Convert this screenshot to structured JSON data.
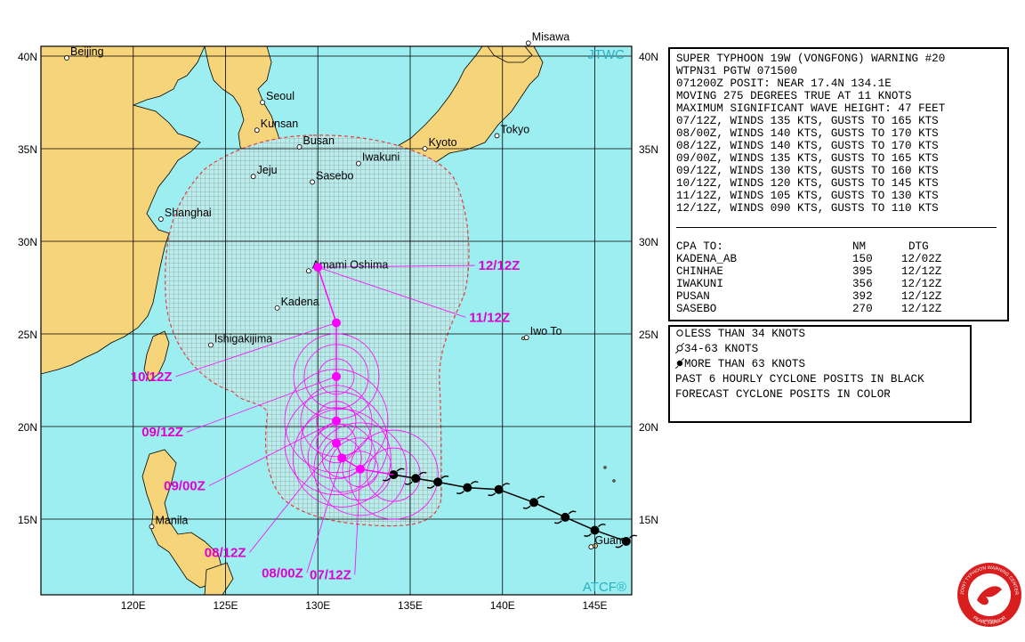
{
  "colors": {
    "ocean": "#9deef0",
    "land": "#f5d47a",
    "grid": "#000000",
    "forecast": "#ff00ff",
    "past": "#000000",
    "danger_fill": "#8fa0a0",
    "danger_edge": "#e04040"
  },
  "map": {
    "lat_labels": [
      "40N",
      "35N",
      "30N",
      "25N",
      "20N",
      "15N"
    ],
    "lon_labels": [
      "120E",
      "125E",
      "130E",
      "135E",
      "140E",
      "145E"
    ],
    "source_label": "JTWC",
    "atcf_label": "ATCF®",
    "places": [
      {
        "name": "Beijing",
        "lon": 116.4,
        "lat": 39.9
      },
      {
        "name": "Misawa",
        "lon": 141.4,
        "lat": 40.7
      },
      {
        "name": "Seoul",
        "lon": 127.0,
        "lat": 37.5
      },
      {
        "name": "Kunsan",
        "lon": 126.7,
        "lat": 36.0
      },
      {
        "name": "Busan",
        "lon": 129.0,
        "lat": 35.1
      },
      {
        "name": "Jeju",
        "lon": 126.5,
        "lat": 33.5
      },
      {
        "name": "Sasebo",
        "lon": 129.7,
        "lat": 33.2
      },
      {
        "name": "Iwakuni",
        "lon": 132.2,
        "lat": 34.2
      },
      {
        "name": "Kyoto",
        "lon": 135.8,
        "lat": 35.0
      },
      {
        "name": "Tokyo",
        "lon": 139.7,
        "lat": 35.7
      },
      {
        "name": "Shanghai",
        "lon": 121.5,
        "lat": 31.2
      },
      {
        "name": "Amami Oshima",
        "lon": 129.5,
        "lat": 28.4
      },
      {
        "name": "Kadena",
        "lon": 127.8,
        "lat": 26.4
      },
      {
        "name": "Ishigakijima",
        "lon": 124.2,
        "lat": 24.4
      },
      {
        "name": "Iwo To",
        "lon": 141.3,
        "lat": 24.8
      },
      {
        "name": "Manila",
        "lon": 121.0,
        "lat": 14.6
      },
      {
        "name": "Guam",
        "lon": 144.8,
        "lat": 13.5
      }
    ],
    "past_track": [
      {
        "lon": 146.7,
        "lat": 13.8
      },
      {
        "lon": 145.0,
        "lat": 14.4
      },
      {
        "lon": 143.4,
        "lat": 15.1
      },
      {
        "lon": 141.7,
        "lat": 15.9
      },
      {
        "lon": 139.8,
        "lat": 16.6
      },
      {
        "lon": 138.1,
        "lat": 16.7
      },
      {
        "lon": 136.5,
        "lat": 17.0
      },
      {
        "lon": 135.3,
        "lat": 17.2
      },
      {
        "lon": 134.1,
        "lat": 17.4
      }
    ],
    "forecast_track": [
      {
        "label": "07/12Z",
        "lon": 132.3,
        "lat": 17.7,
        "label_lon": 132.0,
        "label_lat": 12.0
      },
      {
        "label": "08/00Z",
        "lon": 131.3,
        "lat": 18.3,
        "label_lon": 129.4,
        "label_lat": 12.1
      },
      {
        "label": "08/12Z",
        "lon": 131.0,
        "lat": 19.1,
        "label_lon": 126.3,
        "label_lat": 13.2
      },
      {
        "label": "09/00Z",
        "lon": 131.0,
        "lat": 20.3,
        "label_lon": 124.1,
        "label_lat": 16.8
      },
      {
        "label": "09/12Z",
        "lon": 131.0,
        "lat": 22.7,
        "label_lon": 122.9,
        "label_lat": 19.7
      },
      {
        "label": "10/12Z",
        "lon": 131.0,
        "lat": 25.6,
        "label_lon": 122.3,
        "label_lat": 22.7
      },
      {
        "label": "11/12Z",
        "lon": 130.0,
        "lat": 28.6,
        "label_lon": 138.0,
        "label_lat": 25.9
      },
      {
        "label": "12/12Z",
        "lon": 130.0,
        "lat": 28.6,
        "label_lon": 138.5,
        "label_lat": 28.7
      }
    ]
  },
  "warning": {
    "lines": [
      "SUPER TYPHOON 19W (VONGFONG) WARNING #20",
      "WTPN31 PGTW 071500",
      "071200Z POSIT: NEAR 17.4N 134.1E",
      "MOVING 275 DEGREES TRUE AT 11 KNOTS",
      "MAXIMUM SIGNIFICANT WAVE HEIGHT: 47 FEET",
      "07/12Z, WINDS 135 KTS, GUSTS TO 165 KTS",
      "08/00Z, WINDS 140 KTS, GUSTS TO 170 KTS",
      "08/12Z, WINDS 140 KTS, GUSTS TO 170 KTS",
      "09/00Z, WINDS 135 KTS, GUSTS TO 165 KTS",
      "09/12Z, WINDS 130 KTS, GUSTS TO 160 KTS",
      "10/12Z, WINDS 120 KTS, GUSTS TO 145 KTS",
      "11/12Z, WINDS 105 KTS, GUSTS TO 130 KTS",
      "12/12Z, WINDS 090 KTS, GUSTS TO 110 KTS"
    ],
    "cpa_header": {
      "col1": "CPA TO:",
      "col2": "NM",
      "col3": "DTG"
    },
    "cpa_rows": [
      {
        "name": "KADENA_AB",
        "nm": "150",
        "dtg": "12/02Z"
      },
      {
        "name": "CHINHAE",
        "nm": "395",
        "dtg": "12/12Z"
      },
      {
        "name": "IWAKUNI",
        "nm": "356",
        "dtg": "12/12Z"
      },
      {
        "name": "PUSAN",
        "nm": "392",
        "dtg": "12/12Z"
      },
      {
        "name": "SASEBO",
        "nm": "270",
        "dtg": "12/12Z"
      }
    ]
  },
  "legend": {
    "lines": [
      {
        "text": "LESS THAN 34 KNOTS",
        "icon": "open-circle-icon"
      },
      {
        "text": "34-63 KNOTS",
        "icon": "tropical-storm-icon"
      },
      {
        "text": "MORE THAN 63 KNOTS",
        "icon": "typhoon-icon"
      },
      {
        "text": "PAST 6 HOURLY CYCLONE POSITS IN BLACK",
        "icon": ""
      },
      {
        "text": "FORECAST CYCLONE POSITS IN COLOR",
        "icon": ""
      }
    ]
  },
  "logo": {
    "top_text": "JOINT TYPHOON WARNING CENTER",
    "bottom_text": "PEARL HARBOR",
    "sub_text": "HAWAII"
  }
}
